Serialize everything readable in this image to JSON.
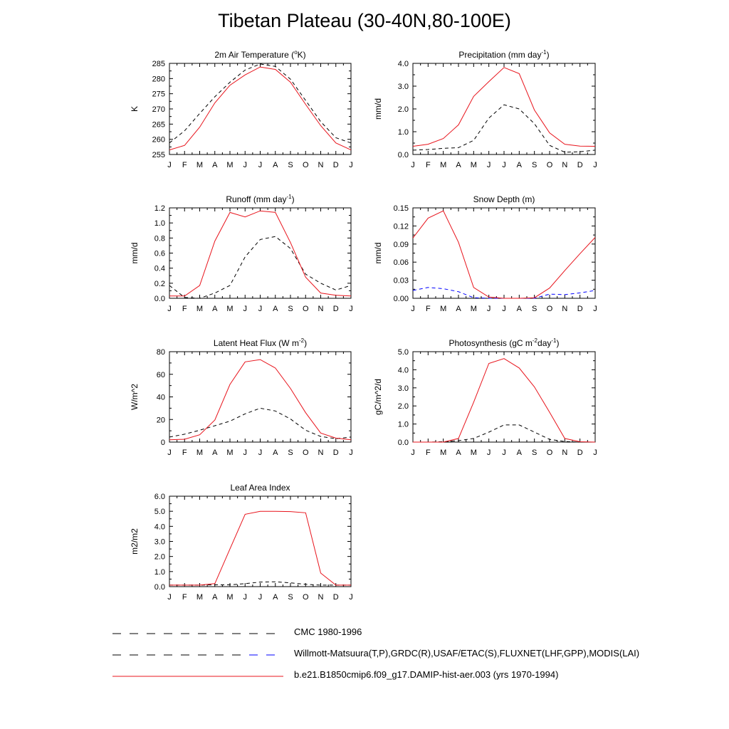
{
  "figure_title": "Tibetan Plateau (30-40N,80-100E)",
  "legend": [
    {
      "label": "CMC 1980-1996",
      "color": "#000000",
      "dash": true
    },
    {
      "label": "Willmott-Matsuura(T,P),GRDC(R),USAF/ETAC(S),FLUXNET(LHF,GPP),MODIS(LAI)",
      "color": "#000000",
      "dash": true,
      "tail_color": "#0000ff"
    },
    {
      "label": "b.e21.B1850cmip6.f09_g17.DAMIP-hist-aer.003 (yrs 1970-1994)",
      "color": "#e8141c",
      "dash": false
    }
  ],
  "chart_data": [
    {
      "type": "line",
      "title": "2m Air Temperature (",
      "title_sup": "o",
      "title_tail": "K)",
      "ylabel": "K",
      "x": [
        "J",
        "F",
        "M",
        "A",
        "M",
        "J",
        "J",
        "A",
        "S",
        "O",
        "N",
        "D",
        "J"
      ],
      "ylim": [
        255,
        285
      ],
      "yticks": [
        255,
        260,
        265,
        270,
        275,
        280,
        285
      ],
      "ytick_labels": [
        "255",
        "260",
        "265",
        "270",
        "275",
        "280",
        "285"
      ],
      "series": [
        {
          "color": "#000000",
          "dash": true,
          "values": [
            258.8,
            262.8,
            268.5,
            274.0,
            278.8,
            282.8,
            284.8,
            284.0,
            279.8,
            272.8,
            265.8,
            260.5,
            258.8
          ]
        },
        {
          "color": "#e8141c",
          "dash": false,
          "values": [
            256.5,
            258.0,
            264.0,
            272.0,
            277.8,
            281.2,
            283.8,
            283.0,
            278.8,
            271.5,
            264.5,
            258.8,
            256.5
          ]
        }
      ]
    },
    {
      "type": "line",
      "title": "Precipitation (mm day",
      "title_sup": "-1",
      "title_tail": ")",
      "ylabel": "mm/d",
      "x": [
        "J",
        "F",
        "M",
        "A",
        "M",
        "J",
        "J",
        "A",
        "S",
        "O",
        "N",
        "D",
        "J"
      ],
      "ylim": [
        0,
        4
      ],
      "yticks": [
        0,
        1,
        2,
        3,
        4
      ],
      "ytick_labels": [
        "0.0",
        "1.0",
        "2.0",
        "3.0",
        "4.0"
      ],
      "series": [
        {
          "color": "#000000",
          "dash": true,
          "values": [
            0.19,
            0.22,
            0.27,
            0.3,
            0.62,
            1.6,
            2.18,
            2.0,
            1.35,
            0.4,
            0.1,
            0.12,
            0.19
          ]
        },
        {
          "color": "#e8141c",
          "dash": false,
          "values": [
            0.36,
            0.45,
            0.7,
            1.3,
            2.55,
            3.2,
            3.82,
            3.55,
            1.95,
            0.95,
            0.45,
            0.37,
            0.36
          ]
        }
      ]
    },
    {
      "type": "line",
      "title": "Runoff (mm day",
      "title_sup": "-1",
      "title_tail": ")",
      "ylabel": "mm/d",
      "x": [
        "J",
        "F",
        "M",
        "A",
        "M",
        "J",
        "J",
        "A",
        "S",
        "O",
        "N",
        "D",
        "J"
      ],
      "ylim": [
        0,
        1.2
      ],
      "yticks": [
        0,
        0.2,
        0.4,
        0.6,
        0.8,
        1.0,
        1.2
      ],
      "ytick_labels": [
        "0.0",
        "0.2",
        "0.4",
        "0.6",
        "0.8",
        "1.0",
        "1.2"
      ],
      "series": [
        {
          "color": "#000000",
          "dash": true,
          "values": [
            0.17,
            0.01,
            0.0,
            0.07,
            0.17,
            0.55,
            0.78,
            0.82,
            0.66,
            0.32,
            0.2,
            0.11,
            0.17
          ]
        },
        {
          "color": "#e8141c",
          "dash": false,
          "values": [
            0.03,
            0.03,
            0.17,
            0.76,
            1.14,
            1.08,
            1.16,
            1.14,
            0.74,
            0.28,
            0.07,
            0.04,
            0.03
          ]
        }
      ]
    },
    {
      "type": "line",
      "title": "Snow Depth (m)",
      "title_sup": "",
      "title_tail": "",
      "ylabel": "mm/d",
      "x": [
        "J",
        "F",
        "M",
        "A",
        "M",
        "J",
        "J",
        "A",
        "S",
        "O",
        "N",
        "D",
        "J"
      ],
      "ylim": [
        0,
        0.15
      ],
      "yticks": [
        0,
        0.03,
        0.06,
        0.09,
        0.12,
        0.15
      ],
      "ytick_labels": [
        "0.00",
        "0.03",
        "0.06",
        "0.09",
        "0.12",
        "0.15"
      ],
      "series": [
        {
          "color": "#000000",
          "dash": true,
          "values": [
            0,
            0,
            0,
            0,
            0,
            0,
            0,
            0,
            0,
            0,
            0,
            0,
            0
          ]
        },
        {
          "color": "#0000ff",
          "dash": true,
          "values": [
            0.013,
            0.018,
            0.016,
            0.011,
            0.001,
            0.0,
            0.0,
            0.0,
            0.0,
            0.007,
            0.006,
            0.009,
            0.013
          ]
        },
        {
          "color": "#e8141c",
          "dash": false,
          "values": [
            0.1,
            0.133,
            0.145,
            0.093,
            0.018,
            0.002,
            0.0,
            0.0,
            0.001,
            0.017,
            0.046,
            0.074,
            0.101
          ]
        }
      ]
    },
    {
      "type": "line",
      "title": "Latent Heat Flux (W m",
      "title_sup": "-2",
      "title_tail": ")",
      "ylabel": "W/m^2",
      "x": [
        "J",
        "F",
        "M",
        "A",
        "M",
        "J",
        "J",
        "A",
        "S",
        "O",
        "N",
        "D",
        "J"
      ],
      "ylim": [
        0,
        80
      ],
      "yticks": [
        0,
        20,
        40,
        60,
        80
      ],
      "ytick_labels": [
        "0",
        "20",
        "40",
        "60",
        "80"
      ],
      "series": [
        {
          "color": "#000000",
          "dash": true,
          "values": [
            4.5,
            7.0,
            10.5,
            14.5,
            18.5,
            25.0,
            30.0,
            27.5,
            20.5,
            10.5,
            5.0,
            3.0,
            4.5
          ]
        },
        {
          "color": "#e8141c",
          "dash": false,
          "values": [
            2.0,
            2.5,
            6.5,
            19.5,
            51.0,
            71.0,
            73.0,
            65.5,
            47.5,
            26.0,
            8.0,
            3.5,
            2.0
          ]
        }
      ]
    },
    {
      "type": "line",
      "title": "Photosynthesis (gC m",
      "title_sup": "-2",
      "title_tail": "day",
      "title_sup2": "-1",
      "title_tail2": ")",
      "ylabel": "gC/m^2/d",
      "x": [
        "J",
        "F",
        "M",
        "A",
        "M",
        "J",
        "J",
        "A",
        "S",
        "O",
        "N",
        "D",
        "J"
      ],
      "ylim": [
        0,
        5
      ],
      "yticks": [
        0,
        1,
        2,
        3,
        4,
        5
      ],
      "ytick_labels": [
        "0.0",
        "1.0",
        "2.0",
        "3.0",
        "4.0",
        "5.0"
      ],
      "series": [
        {
          "color": "#000000",
          "dash": true,
          "values": [
            0.0,
            0.0,
            0.02,
            0.08,
            0.2,
            0.55,
            0.95,
            0.95,
            0.55,
            0.15,
            0.03,
            0.0,
            0.0
          ]
        },
        {
          "color": "#e8141c",
          "dash": false,
          "values": [
            0.0,
            0.0,
            0.0,
            0.2,
            2.2,
            4.35,
            4.62,
            4.1,
            3.05,
            1.65,
            0.2,
            0.02,
            0.0
          ]
        }
      ]
    },
    {
      "type": "line",
      "title": "Leaf Area Index",
      "title_sup": "",
      "title_tail": "",
      "ylabel": "m2/m2",
      "x": [
        "J",
        "F",
        "M",
        "A",
        "M",
        "J",
        "J",
        "A",
        "S",
        "O",
        "N",
        "D",
        "J"
      ],
      "ylim": [
        0,
        6
      ],
      "yticks": [
        0,
        1,
        2,
        3,
        4,
        5,
        6
      ],
      "ytick_labels": [
        "0.0",
        "1.0",
        "2.0",
        "3.0",
        "4.0",
        "5.0",
        "6.0"
      ],
      "series": [
        {
          "color": "#000000",
          "dash": true,
          "values": [
            0.1,
            0.1,
            0.1,
            0.12,
            0.12,
            0.2,
            0.3,
            0.32,
            0.25,
            0.15,
            0.1,
            0.1,
            0.1
          ]
        },
        {
          "color": "#e8141c",
          "dash": false,
          "values": [
            0.1,
            0.1,
            0.1,
            0.2,
            2.5,
            4.8,
            5.0,
            5.0,
            4.98,
            4.9,
            0.9,
            0.1,
            0.1
          ]
        }
      ]
    }
  ]
}
